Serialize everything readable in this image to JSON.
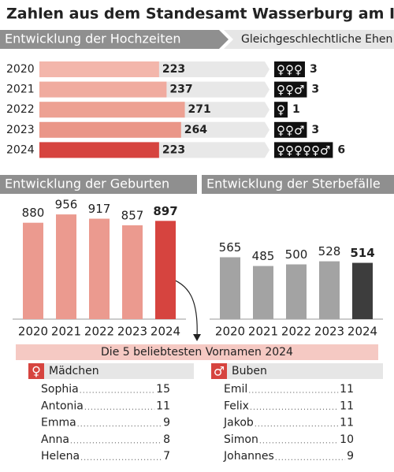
{
  "title": "Zahlen aus dem Standesamt Wasserburg am Inn",
  "chart_data": [
    {
      "type": "hbar",
      "title": "Entwicklung der Hochzeiten",
      "categories": [
        "2020",
        "2021",
        "2022",
        "2023",
        "2024"
      ],
      "values": [
        223,
        237,
        271,
        264,
        223
      ],
      "colors": [
        "#f3b6ab",
        "#f0ab9f",
        "#eda193",
        "#ea9688",
        "#d6443f"
      ],
      "xlim": [
        0,
        420
      ]
    },
    {
      "type": "symbol-count",
      "title": "Gleichgeschlechtliche Ehen",
      "symbols": [
        "♀♀♀",
        "♀♀♂",
        "♀",
        "♀♀♂",
        "♀♀♀♀♀♂"
      ],
      "values": [
        3,
        3,
        1,
        3,
        6
      ]
    },
    {
      "type": "bar",
      "title": "Entwicklung der Geburten",
      "categories": [
        "2020",
        "2021",
        "2022",
        "2023",
        "2024"
      ],
      "values": [
        880,
        956,
        917,
        857,
        897
      ],
      "colors": [
        "#eb9a8f",
        "#eb9a8f",
        "#eb9a8f",
        "#eb9a8f",
        "#d6443f"
      ],
      "ylim": [
        0,
        1000
      ]
    },
    {
      "type": "bar",
      "title": "Entwicklung der Sterbefälle",
      "categories": [
        "2020",
        "2021",
        "2022",
        "2023",
        "2024"
      ],
      "values": [
        565,
        485,
        500,
        528,
        514
      ],
      "colors": [
        "#a3a3a3",
        "#a3a3a3",
        "#a3a3a3",
        "#a3a3a3",
        "#3d3d3d"
      ],
      "ylim": [
        0,
        1000
      ]
    }
  ],
  "names": {
    "title": "Die 5 beliebtesten Vornamen 2024",
    "groups": [
      {
        "symbol": "♀",
        "label": "Mädchen",
        "entries": [
          {
            "name": "Sophia",
            "count": 15
          },
          {
            "name": "Antonia",
            "count": 11
          },
          {
            "name": "Emma",
            "count": 9
          },
          {
            "name": "Anna",
            "count": 8
          },
          {
            "name": "Helena",
            "count": 7
          }
        ]
      },
      {
        "symbol": "♂",
        "label": "Buben",
        "entries": [
          {
            "name": "Emil",
            "count": 11
          },
          {
            "name": "Felix",
            "count": 11
          },
          {
            "name": "Jakob",
            "count": 11
          },
          {
            "name": "Simon",
            "count": 10
          },
          {
            "name": "Johannes",
            "count": 9
          }
        ]
      }
    ]
  }
}
